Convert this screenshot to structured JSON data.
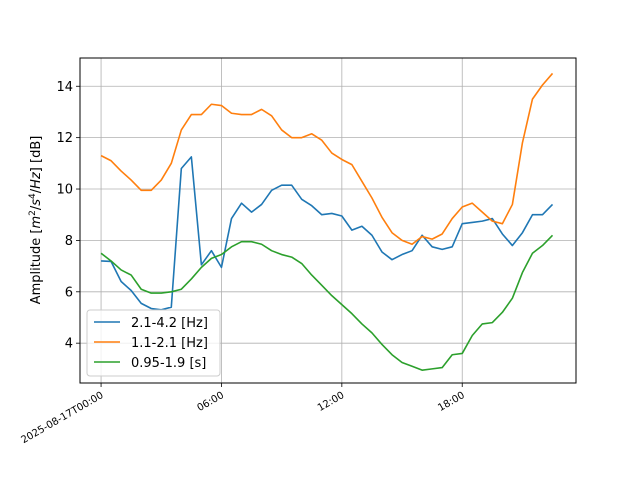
{
  "chart_data": {
    "type": "line",
    "ylabel_parts": {
      "prefix": "Amplitude [",
      "m": "m",
      "m_exp": "2",
      "slash1": "/",
      "s": "s",
      "s_exp": "4",
      "slash2": "/",
      "hz": "Hz",
      "suffix": "] [dB]"
    },
    "x_ticks": [
      {
        "hours": 0,
        "label": "2025-08-17T00:00"
      },
      {
        "hours": 6,
        "label": "06:00"
      },
      {
        "hours": 12,
        "label": "12:00"
      },
      {
        "hours": 18,
        "label": "18:00"
      }
    ],
    "y_ticks": [
      {
        "value": 4,
        "label": "4"
      },
      {
        "value": 6,
        "label": "6"
      },
      {
        "value": 8,
        "label": "8"
      },
      {
        "value": 10,
        "label": "10"
      },
      {
        "value": 12,
        "label": "12"
      },
      {
        "value": 14,
        "label": "14"
      }
    ],
    "xlim_hours": [
      -1.05,
      23.67
    ],
    "ylim": [
      2.45,
      15.1
    ],
    "grid": true,
    "legend_position": "lower-left",
    "x_hours": [
      0,
      0.5,
      1,
      1.5,
      2,
      2.5,
      3,
      3.5,
      4,
      4.5,
      5,
      5.5,
      6,
      6.5,
      7,
      7.5,
      8,
      8.5,
      9,
      9.5,
      10,
      10.5,
      11,
      11.5,
      12,
      12.5,
      13,
      13.5,
      14,
      14.5,
      15,
      15.5,
      16,
      16.5,
      17,
      17.5,
      18,
      18.5,
      19,
      19.5,
      20,
      20.5,
      21,
      21.5,
      22,
      22.5
    ],
    "series": [
      {
        "name": "2.1-4.2 [Hz]",
        "color": "#1f77b4",
        "values": [
          7.2,
          7.18,
          6.4,
          6.05,
          5.55,
          5.35,
          5.3,
          5.4,
          10.8,
          11.25,
          7.05,
          7.6,
          6.95,
          8.85,
          9.45,
          9.1,
          9.4,
          9.95,
          10.15,
          10.15,
          9.6,
          9.35,
          9.0,
          9.05,
          8.95,
          8.4,
          8.55,
          8.2,
          7.55,
          7.25,
          7.45,
          7.6,
          8.2,
          7.75,
          7.65,
          7.75,
          8.65,
          8.7,
          8.75,
          8.85,
          8.25,
          7.8,
          8.3,
          9.0,
          9.0,
          9.4
        ]
      },
      {
        "name": "1.1-2.1 [Hz]",
        "color": "#ff7f0e",
        "values": [
          11.3,
          11.1,
          10.7,
          10.35,
          9.95,
          9.95,
          10.35,
          11.0,
          12.3,
          12.9,
          12.9,
          13.3,
          13.25,
          12.95,
          12.9,
          12.9,
          13.1,
          12.85,
          12.3,
          12.0,
          12.0,
          12.15,
          11.9,
          11.4,
          11.15,
          10.95,
          10.3,
          9.65,
          8.9,
          8.3,
          8.0,
          7.85,
          8.15,
          8.05,
          8.25,
          8.85,
          9.3,
          9.45,
          9.1,
          8.75,
          8.65,
          9.4,
          11.8,
          13.5,
          14.05,
          14.5
        ]
      },
      {
        "name": "0.95-1.9 [s]",
        "color": "#2ca02c",
        "values": [
          7.5,
          7.2,
          6.85,
          6.65,
          6.1,
          5.95,
          5.95,
          6.0,
          6.1,
          6.5,
          6.95,
          7.3,
          7.45,
          7.75,
          7.95,
          7.95,
          7.85,
          7.6,
          7.45,
          7.35,
          7.1,
          6.65,
          6.25,
          5.85,
          5.5,
          5.15,
          4.75,
          4.4,
          3.95,
          3.55,
          3.25,
          3.1,
          2.95,
          3.0,
          3.05,
          3.55,
          3.6,
          4.3,
          4.75,
          4.8,
          5.2,
          5.75,
          6.75,
          7.5,
          7.8,
          8.2
        ]
      }
    ]
  }
}
